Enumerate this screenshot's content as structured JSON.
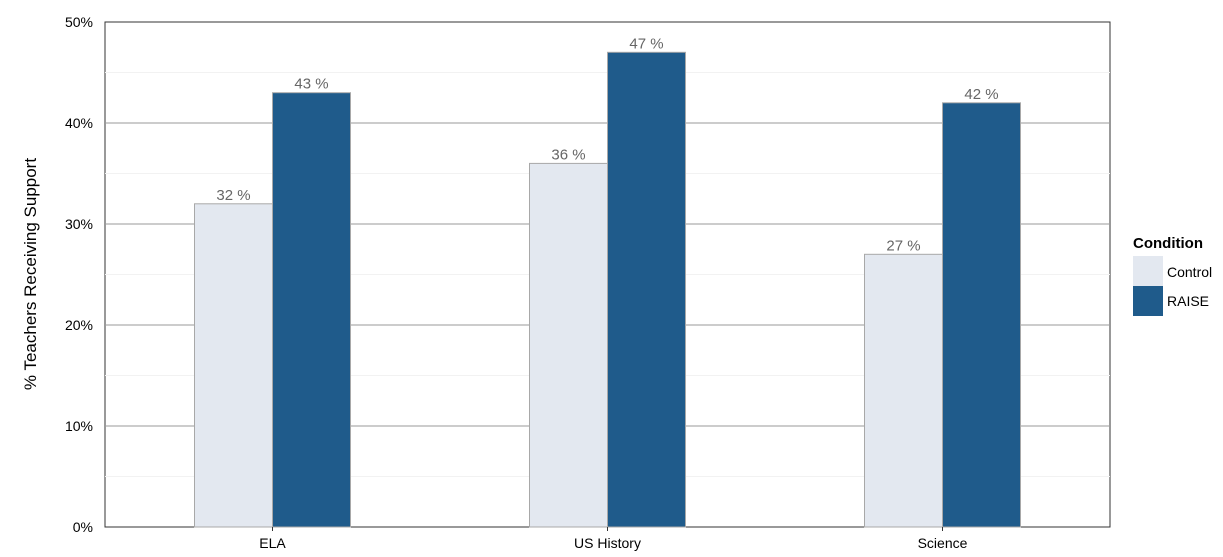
{
  "chart_data": {
    "type": "bar",
    "categories": [
      "ELA",
      "US History",
      "Science"
    ],
    "series": [
      {
        "name": "Control",
        "values": [
          32,
          36,
          27
        ],
        "color": "#e3e8f0"
      },
      {
        "name": "RAISE",
        "values": [
          43,
          47,
          42
        ],
        "color": "#1f5b8b"
      }
    ],
    "data_labels": [
      [
        "32 %",
        "36 %",
        "27 %"
      ],
      [
        "43 %",
        "47 %",
        "42 %"
      ]
    ],
    "ylabel": "% Teachers Receiving Support",
    "yticks": [
      "0%",
      "10%",
      "20%",
      "30%",
      "40%",
      "50%"
    ],
    "ylim": [
      0,
      50
    ],
    "legend": {
      "title": "Condition",
      "placement": "right"
    },
    "grid": true
  }
}
